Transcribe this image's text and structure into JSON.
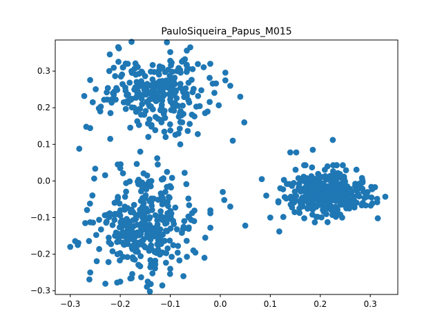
{
  "chart_data": {
    "type": "scatter",
    "title": "PauloSiqueira_Papus_M015",
    "xlabel": "",
    "ylabel": "",
    "xlim": [
      -0.33,
      0.355
    ],
    "ylim": [
      -0.31,
      0.385
    ],
    "x_ticks": [
      -0.3,
      -0.2,
      -0.1,
      0.0,
      0.1,
      0.2,
      0.3
    ],
    "x_tick_labels": [
      "−0.3",
      "−0.2",
      "−0.1",
      "0.0",
      "0.1",
      "0.2",
      "0.3"
    ],
    "y_ticks": [
      -0.3,
      -0.2,
      -0.1,
      0.0,
      0.1,
      0.2,
      0.3
    ],
    "y_tick_labels": [
      "−0.3",
      "−0.2",
      "−0.1",
      "0.0",
      "0.1",
      "0.2",
      "0.3"
    ],
    "grid": false,
    "legend": "none",
    "marker_color": "#1f77b4",
    "clusters": [
      {
        "center": [
          -0.125,
          0.25
        ],
        "spread": [
          0.052,
          0.05
        ],
        "count": 260
      },
      {
        "center": [
          -0.155,
          -0.12
        ],
        "spread": [
          0.052,
          0.07
        ],
        "count": 330
      },
      {
        "center": [
          0.215,
          -0.035
        ],
        "spread": [
          0.038,
          0.03
        ],
        "count": 360
      }
    ],
    "points": [
      [
        -0.282,
        0.088
      ],
      [
        -0.272,
        0.232
      ],
      [
        -0.268,
        0.148
      ],
      [
        -0.255,
        0.215
      ],
      [
        -0.24,
        0.19
      ],
      [
        -0.22,
        0.115
      ],
      [
        -0.227,
        0.242
      ],
      [
        -0.185,
        0.32
      ],
      [
        -0.2,
        0.035
      ],
      [
        -0.1,
        0.352
      ],
      [
        -0.06,
        0.365
      ],
      [
        -0.045,
        0.128
      ],
      [
        -0.02,
        0.32
      ],
      [
        0.02,
        0.26
      ],
      [
        0.04,
        0.23
      ],
      [
        0.048,
        0.16
      ],
      [
        0.025,
        0.11
      ],
      [
        -0.08,
        0.1
      ],
      [
        -0.16,
        0.08
      ],
      [
        -0.125,
        0.045
      ],
      [
        -0.205,
        0.045
      ],
      [
        0.005,
        -0.03
      ],
      [
        0.008,
        -0.052
      ],
      [
        0.02,
        -0.07
      ],
      [
        0.05,
        -0.122
      ],
      [
        -0.3,
        -0.18
      ],
      [
        -0.285,
        -0.175
      ],
      [
        -0.27,
        -0.115
      ],
      [
        -0.26,
        -0.25
      ],
      [
        -0.2,
        -0.275
      ],
      [
        -0.145,
        -0.275
      ],
      [
        -0.1,
        -0.24
      ],
      [
        -0.03,
        -0.155
      ],
      [
        0.083,
        0.005
      ],
      [
        0.1,
        -0.1
      ],
      [
        0.118,
        -0.138
      ],
      [
        0.14,
        0.078
      ],
      [
        0.152,
        0.078
      ],
      [
        0.185,
        0.085
      ],
      [
        0.225,
        0.112
      ],
      [
        0.315,
        -0.102
      ],
      [
        0.33,
        -0.043
      ],
      [
        0.285,
        -0.06
      ],
      [
        0.12,
        -0.02
      ],
      [
        0.092,
        -0.04
      ]
    ]
  }
}
